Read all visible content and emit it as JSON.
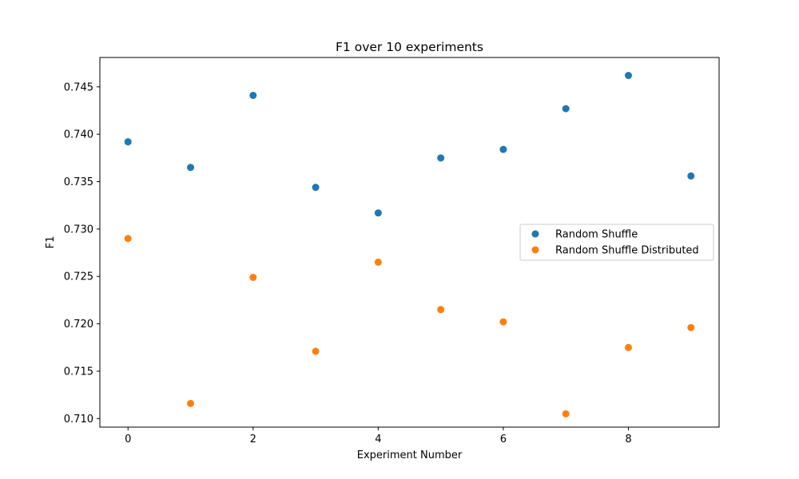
{
  "chart_data": {
    "type": "scatter",
    "title": "F1 over 10 experiments",
    "xlabel": "Experiment Number",
    "ylabel": "F1",
    "xlim": [
      -0.45,
      9.45
    ],
    "ylim": [
      0.7091,
      0.7481
    ],
    "x_ticks": [
      0,
      2,
      4,
      6,
      8
    ],
    "y_ticks": [
      0.71,
      0.715,
      0.72,
      0.725,
      0.73,
      0.735,
      0.74,
      0.745
    ],
    "y_tick_labels": [
      "0.710",
      "0.715",
      "0.720",
      "0.725",
      "0.730",
      "0.735",
      "0.740",
      "0.745"
    ],
    "grid": false,
    "legend_position": "center-right",
    "series": [
      {
        "name": "Random Shuffle",
        "color": "#1f77b4",
        "x": [
          0,
          1,
          2,
          3,
          4,
          5,
          6,
          7,
          8,
          9
        ],
        "y": [
          0.7392,
          0.7365,
          0.7441,
          0.7344,
          0.7317,
          0.7375,
          0.7384,
          0.7427,
          0.7462,
          0.7356
        ]
      },
      {
        "name": "Random Shuffle Distributed",
        "color": "#ff7f0e",
        "x": [
          0,
          1,
          2,
          3,
          4,
          5,
          6,
          7,
          8,
          9
        ],
        "y": [
          0.729,
          0.7116,
          0.7249,
          0.7171,
          0.7265,
          0.7215,
          0.7202,
          0.7105,
          0.7175,
          0.7196
        ]
      }
    ]
  }
}
